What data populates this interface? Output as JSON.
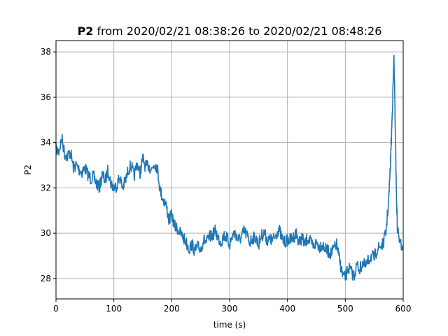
{
  "chart_data": {
    "type": "line",
    "title_bold": "P2",
    "title_rest": " from 2020/02/21 08:38:26 to 2020/02/21 08:48:26",
    "xlabel": "time (s)",
    "ylabel": "P2",
    "xlim": [
      0,
      600
    ],
    "ylim": [
      27.1,
      38.5
    ],
    "xticks": [
      0,
      100,
      200,
      300,
      400,
      500,
      600
    ],
    "yticks": [
      28,
      30,
      32,
      34,
      36,
      38
    ],
    "grid": true,
    "line_color": "#1f77b4",
    "series": [
      {
        "color": "#1f77b4",
        "x": [
          0,
          5,
          10,
          15,
          20,
          25,
          30,
          35,
          40,
          45,
          50,
          55,
          60,
          65,
          70,
          75,
          80,
          85,
          90,
          95,
          100,
          105,
          110,
          115,
          120,
          125,
          130,
          135,
          140,
          145,
          150,
          155,
          160,
          165,
          170,
          175,
          180,
          185,
          190,
          195,
          200,
          205,
          210,
          215,
          220,
          225,
          230,
          235,
          240,
          245,
          250,
          255,
          260,
          265,
          270,
          275,
          280,
          285,
          290,
          295,
          300,
          305,
          310,
          315,
          320,
          325,
          330,
          335,
          340,
          345,
          350,
          355,
          360,
          365,
          370,
          375,
          380,
          385,
          390,
          395,
          400,
          405,
          410,
          415,
          420,
          425,
          430,
          435,
          440,
          445,
          450,
          455,
          460,
          465,
          470,
          475,
          480,
          485,
          490,
          495,
          500,
          505,
          510,
          515,
          520,
          525,
          530,
          535,
          540,
          545,
          550,
          555,
          560,
          565,
          570,
          575,
          578,
          580,
          582,
          584,
          586,
          588,
          590,
          595,
          600
        ],
        "y": [
          33.7,
          33.6,
          34.2,
          33.5,
          33.4,
          33.6,
          32.9,
          33.0,
          32.8,
          32.7,
          32.9,
          32.6,
          32.4,
          32.5,
          32.2,
          32.0,
          32.6,
          32.3,
          32.8,
          32.2,
          32.0,
          32.1,
          32.5,
          32.0,
          32.3,
          32.8,
          33.0,
          32.5,
          33.1,
          32.6,
          33.3,
          32.9,
          33.0,
          32.8,
          33.1,
          32.9,
          31.9,
          31.5,
          31.3,
          30.6,
          30.8,
          30.3,
          30.2,
          30.0,
          29.8,
          29.6,
          29.3,
          29.5,
          29.2,
          29.4,
          29.3,
          29.7,
          29.6,
          29.8,
          29.9,
          30.1,
          29.8,
          29.6,
          29.9,
          29.8,
          29.5,
          29.9,
          30.0,
          29.7,
          29.8,
          30.1,
          29.9,
          29.6,
          29.8,
          29.8,
          29.5,
          29.9,
          30.0,
          29.7,
          29.7,
          29.7,
          29.9,
          30.2,
          29.8,
          29.6,
          29.7,
          29.7,
          29.8,
          30.0,
          29.6,
          29.8,
          29.5,
          29.8,
          29.6,
          29.4,
          29.6,
          29.4,
          29.5,
          29.3,
          29.2,
          29.1,
          29.3,
          29.5,
          28.8,
          28.2,
          28.0,
          28.5,
          28.3,
          28.1,
          28.6,
          28.4,
          28.7,
          28.5,
          28.8,
          29.0,
          28.9,
          29.3,
          29.4,
          29.5,
          30.0,
          31.5,
          33.0,
          34.5,
          36.0,
          37.8,
          35.2,
          32.0,
          30.2,
          29.5,
          29.5
        ]
      }
    ]
  }
}
